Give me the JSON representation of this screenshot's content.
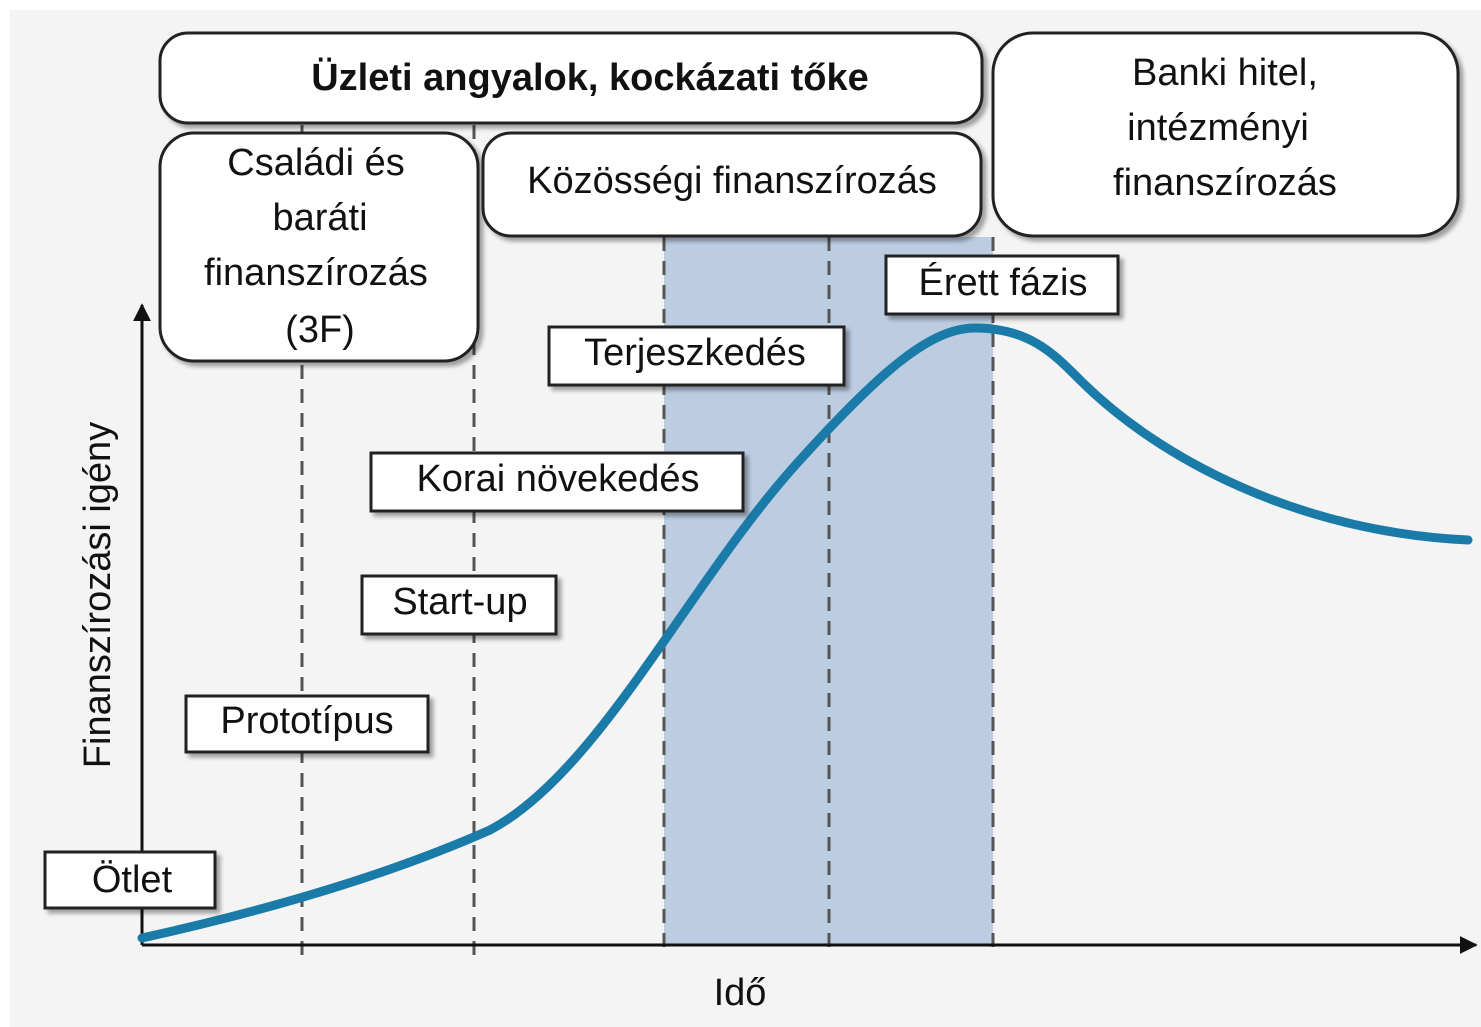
{
  "axes": {
    "y_label": "Finanszírozási igény",
    "x_label": "Idő"
  },
  "funding": [
    {
      "lines": [
        "Üzleti angyalok, kockázati tőke"
      ]
    },
    {
      "lines": [
        "Családi és",
        "baráti",
        "finanszírozás",
        "(3F)"
      ]
    },
    {
      "lines": [
        "Közösségi finanszírozás"
      ]
    },
    {
      "lines": [
        "Banki hitel,",
        "intézményi",
        "finanszírozás"
      ]
    }
  ],
  "stages": [
    "Ötlet",
    "Prototípus",
    "Start-up",
    "Korai növekedés",
    "Terjeszkedés",
    "Érett fázis"
  ]
}
